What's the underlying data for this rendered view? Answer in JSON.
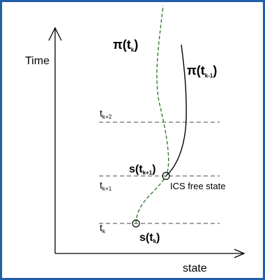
{
  "axes": {
    "y_label": "Time",
    "x_label": "state"
  },
  "time_levels": [
    {
      "id": "tk",
      "base": "t",
      "sub": "k"
    },
    {
      "id": "tk1",
      "base": "t",
      "sub": "k+1"
    },
    {
      "id": "tk2",
      "base": "t",
      "sub": "k+2"
    }
  ],
  "trajectories": [
    {
      "id": "pi_tk",
      "base": "π(t",
      "sub": "k",
      "close": ")",
      "style": "dashed",
      "color": "#2e7d32"
    },
    {
      "id": "pi_tk_minus_1",
      "base": "π(t",
      "sub": "k-1",
      "close": ")",
      "style": "solid",
      "color": "#000000"
    }
  ],
  "states": [
    {
      "id": "s_tk",
      "base": "s(t",
      "sub": "k",
      "close": ")"
    },
    {
      "id": "s_tk1",
      "base": "s(t",
      "sub": "k+1",
      "close": ")"
    }
  ],
  "annotation": {
    "ics_free_state": "ICS free state"
  },
  "colors": {
    "frame": "#1f5fa8",
    "green_path": "#2e7d32",
    "black_path": "#000000",
    "dash_line": "#444444"
  }
}
